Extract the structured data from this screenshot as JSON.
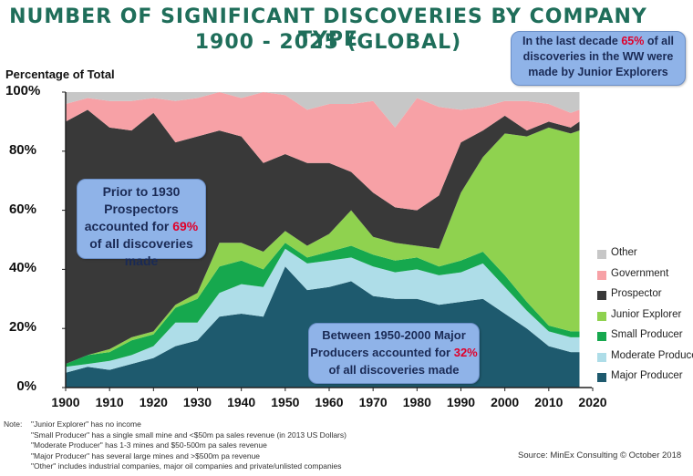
{
  "title_line1": "NUMBER OF SIGNIFICANT DISCOVERIES BY COMPANY TYPE",
  "title_line2": "1900 - 2025 (GLOBAL)",
  "callouts": {
    "top": {
      "pre": "In the last decade ",
      "hl": "65%",
      "post": " of all discoveries in the WW were made by Junior Explorers"
    },
    "left": {
      "pre": "Prior to 1930 Prospectors accounted for ",
      "hl": "69%",
      "post": " of all discoveries made"
    },
    "bottom": {
      "pre": "Between 1950-2000 Major Producers accounted for ",
      "hl": "32%",
      "post": " of all discoveries made"
    }
  },
  "notes": {
    "heading": "Note:",
    "lines": [
      "\"Junior Explorer\" has no income",
      "\"Small Producer\" has a single small mine and <$50m pa sales  revenue (in 2013 US Dollars)",
      "\"Moderate Producer\" has 1-3 mines and $50-500m pa sales revenue",
      "\"Major Producer\" has several large mines and >$500m pa revenue",
      "\"Other\" includes industrial companies, major oil companies and private/unlisted companies"
    ]
  },
  "source": "Source: MinEx Consulting © October 2018",
  "colors": {
    "Other": "#c7c7c7",
    "Government": "#f7a1a6",
    "Prospector": "#393939",
    "Junior Explorer": "#8fd24f",
    "Small Producer": "#16a84e",
    "Moderate Producer": "#aedde8",
    "Major Producer": "#1e5a6e",
    "title": "#1f6e5a",
    "callout": "#8fb3e8",
    "highlight": "#e0002a"
  },
  "chart_data": {
    "type": "area",
    "stacked": true,
    "ylabel": "Percentage of Total",
    "ylim": [
      0,
      100
    ],
    "xlim": [
      1900,
      2020
    ],
    "yticks": [
      "0%",
      "20%",
      "40%",
      "60%",
      "80%",
      "100%"
    ],
    "xticks": [
      "1900",
      "1910",
      "1920",
      "1930",
      "1940",
      "1950",
      "1960",
      "1970",
      "1980",
      "1990",
      "2000",
      "2010",
      "2020"
    ],
    "legend_position": "right",
    "x": [
      1900,
      1905,
      1910,
      1915,
      1920,
      1925,
      1930,
      1935,
      1940,
      1945,
      1950,
      1955,
      1960,
      1965,
      1970,
      1975,
      1980,
      1985,
      1990,
      1995,
      2000,
      2005,
      2010,
      2015,
      2017
    ],
    "series": [
      {
        "name": "Major Producer",
        "values": [
          5,
          7,
          6,
          8,
          10,
          14,
          16,
          24,
          25,
          24,
          41,
          33,
          34,
          36,
          31,
          30,
          30,
          28,
          29,
          30,
          25,
          20,
          14,
          12,
          12
        ]
      },
      {
        "name": "Moderate Producer",
        "values": [
          2,
          1,
          3,
          3,
          4,
          8,
          6,
          8,
          10,
          10,
          6,
          9,
          9,
          8,
          10,
          9,
          10,
          10,
          10,
          12,
          9,
          6,
          5,
          5,
          5
        ]
      },
      {
        "name": "Small Producer",
        "values": [
          1,
          3,
          3,
          5,
          4,
          5,
          8,
          9,
          8,
          6,
          2,
          2,
          3,
          4,
          4,
          4,
          4,
          3,
          4,
          4,
          4,
          3,
          2,
          2,
          2
        ]
      },
      {
        "name": "Junior Explorer",
        "values": [
          0,
          0,
          1,
          1,
          1,
          1,
          2,
          8,
          6,
          6,
          4,
          4,
          6,
          12,
          6,
          6,
          4,
          6,
          23,
          32,
          48,
          56,
          67,
          67,
          68
        ]
      },
      {
        "name": "Prospector",
        "values": [
          82,
          83,
          75,
          70,
          74,
          55,
          53,
          38,
          36,
          30,
          26,
          28,
          24,
          13,
          15,
          12,
          12,
          18,
          17,
          9,
          6,
          2,
          2,
          2,
          3
        ]
      },
      {
        "name": "Government",
        "values": [
          6,
          4,
          9,
          10,
          5,
          14,
          13,
          13,
          13,
          24,
          20,
          18,
          20,
          23,
          31,
          27,
          38,
          30,
          11,
          8,
          5,
          10,
          6,
          5,
          4
        ]
      },
      {
        "name": "Other",
        "values": [
          4,
          2,
          3,
          3,
          2,
          3,
          2,
          0,
          2,
          0,
          1,
          6,
          4,
          4,
          3,
          12,
          2,
          5,
          6,
          5,
          3,
          3,
          4,
          7,
          6
        ]
      }
    ]
  }
}
